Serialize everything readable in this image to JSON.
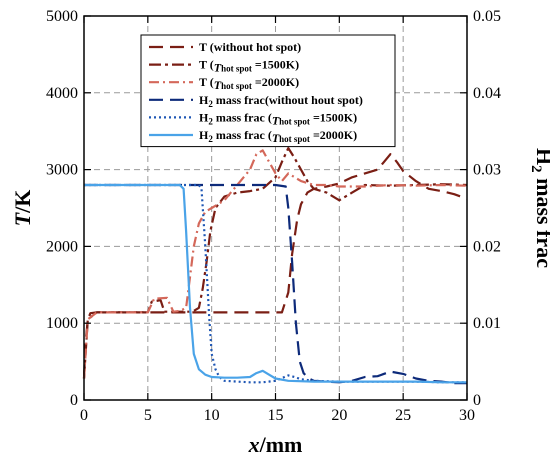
{
  "chart_data": {
    "type": "line",
    "xlabel": {
      "italic": "x",
      "rest": "/mm"
    },
    "ylabel_left": {
      "italic": "T",
      "rest": "/K"
    },
    "ylabel_right": {
      "pre": "H",
      "sub": "2",
      "post": " mass frac"
    },
    "xlim": [
      0,
      30
    ],
    "ylim_left": [
      0,
      5000
    ],
    "ylim_right": [
      0,
      0.05
    ],
    "x_ticks": [
      "0",
      "5",
      "10",
      "15",
      "20",
      "25",
      "30"
    ],
    "y_left_ticks": [
      "0",
      "1000",
      "2000",
      "3000",
      "4000",
      "5000"
    ],
    "y_right_ticks": [
      "0",
      "0.01",
      "0.02",
      "0.03",
      "0.04",
      "0.05"
    ],
    "grid": true,
    "legend_position": "top-center",
    "series": [
      {
        "key": "t_nohot",
        "name": "T (without hot spot)",
        "legend": [
          {
            "t": "T (without hot spot)",
            "s": "n"
          }
        ],
        "axis": "left",
        "color": "#7a1e14",
        "dash": "14,7",
        "x": [
          0,
          0.1,
          0.3,
          0.5,
          1,
          5,
          10,
          15,
          15.5,
          16,
          16.3,
          16.7,
          17,
          17.5,
          18,
          19,
          20,
          21,
          22,
          23,
          23.5,
          24,
          24.5,
          25,
          26,
          27,
          28,
          29,
          30
        ],
        "y": [
          280,
          700,
          1050,
          1130,
          1140,
          1140,
          1140,
          1140,
          1140,
          1400,
          1900,
          2350,
          2550,
          2700,
          2750,
          2780,
          2820,
          2900,
          2950,
          3000,
          3100,
          3200,
          3100,
          2980,
          2850,
          2750,
          2720,
          2680,
          2620
        ]
      },
      {
        "key": "t_1500",
        "name": "T (Thot spot =1500K)",
        "legend": [
          {
            "t": "T (",
            "s": "n"
          },
          {
            "t": "T",
            "s": "sub-i"
          },
          {
            "t": "hot spot",
            "s": "sub"
          },
          {
            "t": " =1500K)",
            "s": "n"
          }
        ],
        "axis": "left",
        "color": "#7a1e14",
        "dash": "12,4,3,4",
        "x": [
          0,
          0.3,
          1,
          5,
          5.3,
          6,
          6.3,
          7,
          8.5,
          9,
          9.3,
          9.6,
          9.9,
          10.3,
          11,
          12,
          13,
          14,
          15,
          15.5,
          16,
          16.5,
          17,
          17.5,
          18,
          19,
          20,
          21,
          22,
          24,
          26,
          28,
          30
        ],
        "y": [
          280,
          1050,
          1140,
          1140,
          1280,
          1300,
          1150,
          1150,
          1150,
          1200,
          1450,
          1800,
          2200,
          2500,
          2650,
          2700,
          2720,
          2750,
          2900,
          3100,
          3280,
          3150,
          3000,
          2850,
          2750,
          2700,
          2600,
          2700,
          2800,
          2790,
          2800,
          2810,
          2800
        ]
      },
      {
        "key": "t_2000",
        "name": "T (Thot spot =2000K)",
        "legend": [
          {
            "t": "T (",
            "s": "n"
          },
          {
            "t": "T",
            "s": "sub-i"
          },
          {
            "t": "hot spot",
            "s": "sub"
          },
          {
            "t": " =2000K)",
            "s": "n"
          }
        ],
        "axis": "left",
        "color": "#d4685a",
        "dash": "10,4,2,4",
        "x": [
          0,
          0.3,
          1,
          5,
          5.5,
          6.5,
          7,
          7.5,
          8,
          8.3,
          8.6,
          9,
          9.5,
          10,
          10.5,
          11,
          11.5,
          12,
          12.5,
          13,
          13.5,
          14,
          14.5,
          15,
          15.5,
          16,
          17,
          18,
          19,
          20,
          22,
          24,
          26,
          28,
          30
        ],
        "y": [
          280,
          1050,
          1140,
          1140,
          1320,
          1330,
          1150,
          1160,
          1200,
          1600,
          2000,
          2300,
          2450,
          2500,
          2550,
          2600,
          2700,
          2800,
          2900,
          3000,
          3200,
          3250,
          3100,
          2950,
          2850,
          2950,
          2850,
          2800,
          2800,
          2780,
          2780,
          2800,
          2790,
          2800,
          2790
        ]
      },
      {
        "key": "h2_nohot",
        "name": "H2 mass frac(without hout spot)",
        "legend": [
          {
            "t": "H",
            "s": "n"
          },
          {
            "t": "2",
            "s": "sub"
          },
          {
            "t": " mass frac(without hout spot)",
            "s": "n"
          }
        ],
        "axis": "right",
        "color": "#0d2a7a",
        "dash": "14,7",
        "x": [
          0,
          5,
          10,
          15,
          15.8,
          16,
          16.3,
          16.6,
          16.9,
          17.2,
          17.6,
          18,
          19,
          20,
          21,
          22,
          23,
          24,
          25,
          26,
          27,
          28,
          29,
          30
        ],
        "y": [
          0.028,
          0.028,
          0.028,
          0.028,
          0.0278,
          0.025,
          0.018,
          0.01,
          0.005,
          0.0035,
          0.0028,
          0.0025,
          0.0024,
          0.0023,
          0.0025,
          0.003,
          0.0031,
          0.0037,
          0.0034,
          0.0028,
          0.0025,
          0.0024,
          0.0022,
          0.0022
        ]
      },
      {
        "key": "h2_1500",
        "name": "H2 mass frac (Thot spot =1500K)",
        "legend": [
          {
            "t": "H",
            "s": "n"
          },
          {
            "t": "2",
            "s": "sub"
          },
          {
            "t": " mass frac (",
            "s": "n"
          },
          {
            "t": "T",
            "s": "sub-i"
          },
          {
            "t": "hot spot",
            "s": "sub"
          },
          {
            "t": " =1500K)",
            "s": "n"
          }
        ],
        "axis": "right",
        "color": "#1e56b4",
        "dash": "2,3",
        "x": [
          0,
          5,
          9,
          9.2,
          9.5,
          9.8,
          10,
          10.3,
          10.6,
          11,
          12,
          13,
          14,
          15,
          16,
          16.5,
          17,
          18,
          20,
          22,
          24,
          26,
          28,
          30
        ],
        "y": [
          0.028,
          0.028,
          0.028,
          0.0275,
          0.02,
          0.011,
          0.006,
          0.004,
          0.003,
          0.0025,
          0.0024,
          0.0023,
          0.0023,
          0.0025,
          0.0032,
          0.003,
          0.0027,
          0.0025,
          0.0024,
          0.0024,
          0.0024,
          0.0024,
          0.0023,
          0.0023
        ]
      },
      {
        "key": "h2_2000",
        "name": "H2 mass frac (Thot spot =2000K)",
        "legend": [
          {
            "t": "H",
            "s": "n"
          },
          {
            "t": "2",
            "s": "sub"
          },
          {
            "t": " mass frac (",
            "s": "n"
          },
          {
            "t": "T",
            "s": "sub-i"
          },
          {
            "t": "hot spot",
            "s": "sub"
          },
          {
            "t": " =2000K)",
            "s": "n"
          }
        ],
        "axis": "right",
        "color": "#4aa3e8",
        "dash": "",
        "x": [
          0,
          5,
          7.5,
          7.8,
          8,
          8.3,
          8.6,
          9,
          9.5,
          10,
          11,
          12,
          13,
          13.5,
          14,
          14.5,
          15,
          16,
          18,
          20,
          22,
          24,
          26,
          28,
          30
        ],
        "y": [
          0.028,
          0.028,
          0.028,
          0.0275,
          0.022,
          0.012,
          0.006,
          0.004,
          0.0033,
          0.003,
          0.0029,
          0.0029,
          0.003,
          0.0035,
          0.0038,
          0.0033,
          0.0028,
          0.0025,
          0.0024,
          0.0024,
          0.0024,
          0.0024,
          0.0024,
          0.0023,
          0.0023
        ]
      }
    ]
  }
}
